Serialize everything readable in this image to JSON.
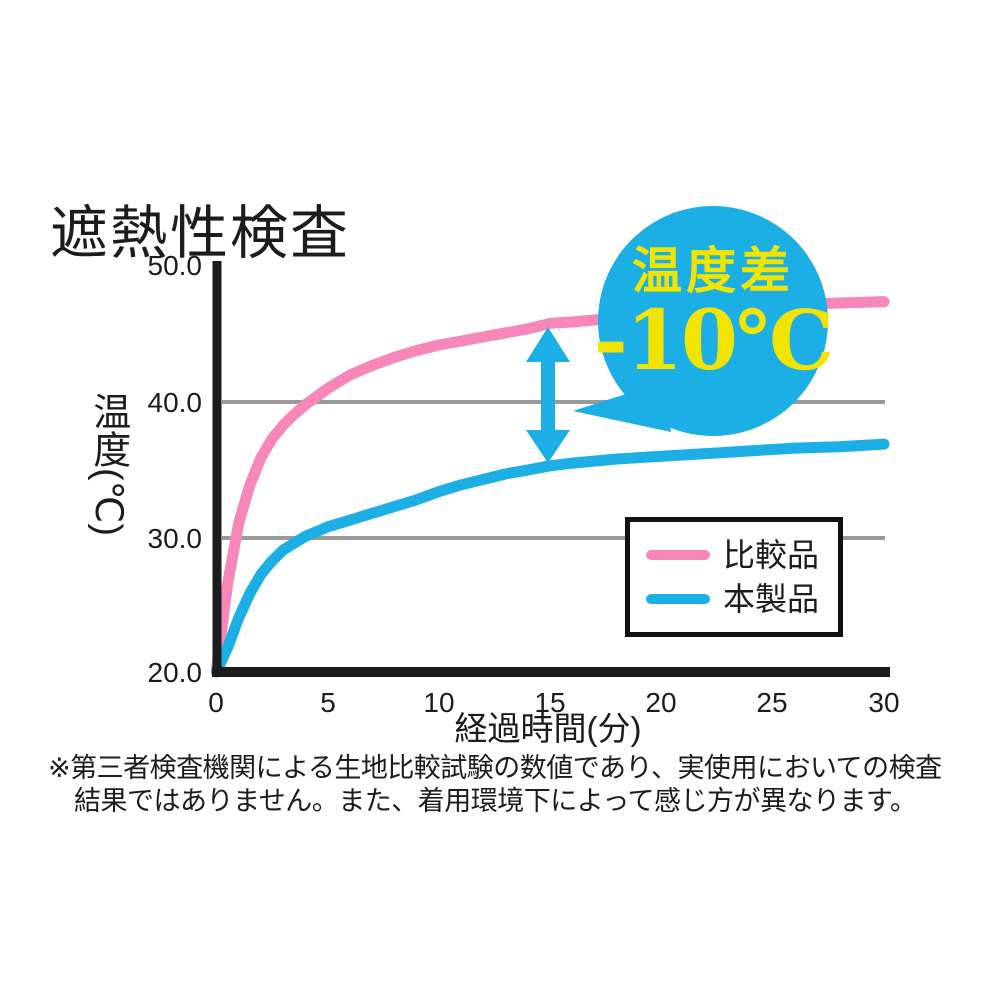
{
  "title": "遮熱性検査",
  "colors": {
    "pink": "#F687B8",
    "cyan": "#1CAFE6",
    "yellow": "#F0E400",
    "grid_gray": "#999999",
    "axis_black": "#1c1c1c",
    "legend_border": "#111111"
  },
  "chart_data": {
    "type": "line",
    "title": "遮熱性検査",
    "xlabel": "経過時間(分)",
    "ylabel": "温度(℃)",
    "xlim": [
      0,
      30
    ],
    "ylim": [
      20.0,
      50.0
    ],
    "xticks": [
      "0",
      "5",
      "10",
      "15",
      "20",
      "25",
      "30"
    ],
    "yticks": [
      "50.0",
      "40.0",
      "30.0",
      "20.0"
    ],
    "gridlines_at_y": [
      40.0,
      30.0
    ],
    "grid": "horizontal-only",
    "legend_position": "inside-right",
    "series": [
      {
        "name": "比較品",
        "color": "#F687B8",
        "x": [
          0,
          0.5,
          1,
          1.5,
          2,
          2.5,
          3,
          3.5,
          4,
          5,
          6,
          7,
          8,
          9,
          10,
          11,
          12,
          13,
          14,
          15,
          16,
          18,
          20,
          22,
          24,
          26,
          28,
          30
        ],
        "y": [
          20.2,
          26.5,
          31.0,
          33.8,
          35.8,
          37.2,
          38.2,
          39.0,
          39.7,
          40.9,
          41.9,
          42.6,
          43.2,
          43.7,
          44.1,
          44.4,
          44.7,
          45.0,
          45.3,
          45.7,
          45.8,
          46.1,
          46.4,
          46.6,
          46.9,
          47.1,
          47.2,
          47.3
        ]
      },
      {
        "name": "本製品",
        "color": "#1CAFE6",
        "x": [
          0,
          0.5,
          1,
          1.5,
          2,
          2.5,
          3,
          3.5,
          4,
          5,
          6,
          7,
          8,
          9,
          10,
          11,
          12,
          13,
          14,
          15,
          16,
          18,
          20,
          22,
          24,
          26,
          28,
          30
        ],
        "y": [
          20.0,
          21.8,
          24.0,
          25.8,
          27.2,
          28.2,
          29.0,
          29.5,
          30.0,
          30.7,
          31.2,
          31.7,
          32.2,
          32.7,
          33.3,
          33.8,
          34.2,
          34.6,
          34.9,
          35.2,
          35.4,
          35.7,
          35.9,
          36.1,
          36.3,
          36.5,
          36.6,
          36.8
        ]
      }
    ],
    "annotation": {
      "type": "difference-arrow-with-badge",
      "at_x_minutes": 15,
      "badge_line1": "温度差",
      "badge_line2": "-10℃"
    }
  },
  "axis": {
    "x_label": "経過時間(分)",
    "y_label_main": "温度",
    "y_label_unit": "(℃)"
  },
  "legend": {
    "items": [
      {
        "label": "比較品",
        "color": "#F687B8"
      },
      {
        "label": "本製品",
        "color": "#1CAFE6"
      }
    ]
  },
  "badge": {
    "line1": "温度差",
    "line2": "-10℃",
    "bg": "#1CAFE6",
    "text_color": "#F0E400"
  },
  "footnote": {
    "line1": "※第三者検査機関による生地比較試験の数値であり、実使用においての検査",
    "line2": "結果ではありません。また、着用環境下によって感じ方が異なります。"
  }
}
